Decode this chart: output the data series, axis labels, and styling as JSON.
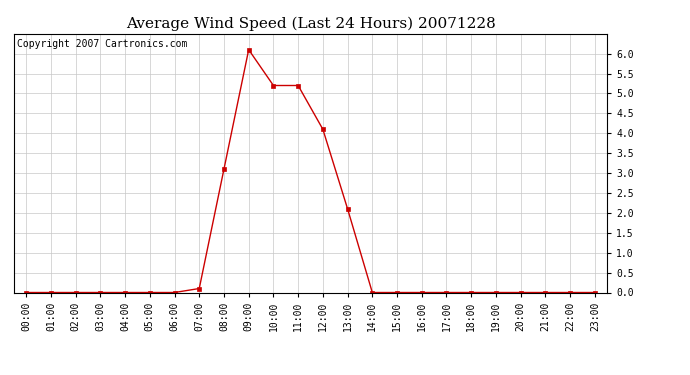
{
  "title": "Average Wind Speed (Last 24 Hours) 20071228",
  "copyright_text": "Copyright 2007 Cartronics.com",
  "hours": [
    "00:00",
    "01:00",
    "02:00",
    "03:00",
    "04:00",
    "05:00",
    "06:00",
    "07:00",
    "08:00",
    "09:00",
    "10:00",
    "11:00",
    "12:00",
    "13:00",
    "14:00",
    "15:00",
    "16:00",
    "17:00",
    "18:00",
    "19:00",
    "20:00",
    "21:00",
    "22:00",
    "23:00"
  ],
  "values": [
    0.0,
    0.0,
    0.0,
    0.0,
    0.0,
    0.0,
    0.0,
    0.1,
    3.1,
    6.1,
    5.2,
    5.2,
    4.1,
    2.1,
    0.0,
    0.0,
    0.0,
    0.0,
    0.0,
    0.0,
    0.0,
    0.0,
    0.0,
    0.0
  ],
  "ylim": [
    0.0,
    6.5
  ],
  "yticks": [
    0.0,
    0.5,
    1.0,
    1.5,
    2.0,
    2.5,
    3.0,
    3.5,
    4.0,
    4.5,
    5.0,
    5.5,
    6.0
  ],
  "line_color": "#cc0000",
  "marker": "s",
  "marker_size": 2.5,
  "background_color": "#ffffff",
  "plot_bg_color": "#ffffff",
  "grid_color": "#c8c8c8",
  "title_fontsize": 11,
  "tick_fontsize": 7,
  "copyright_fontsize": 7
}
